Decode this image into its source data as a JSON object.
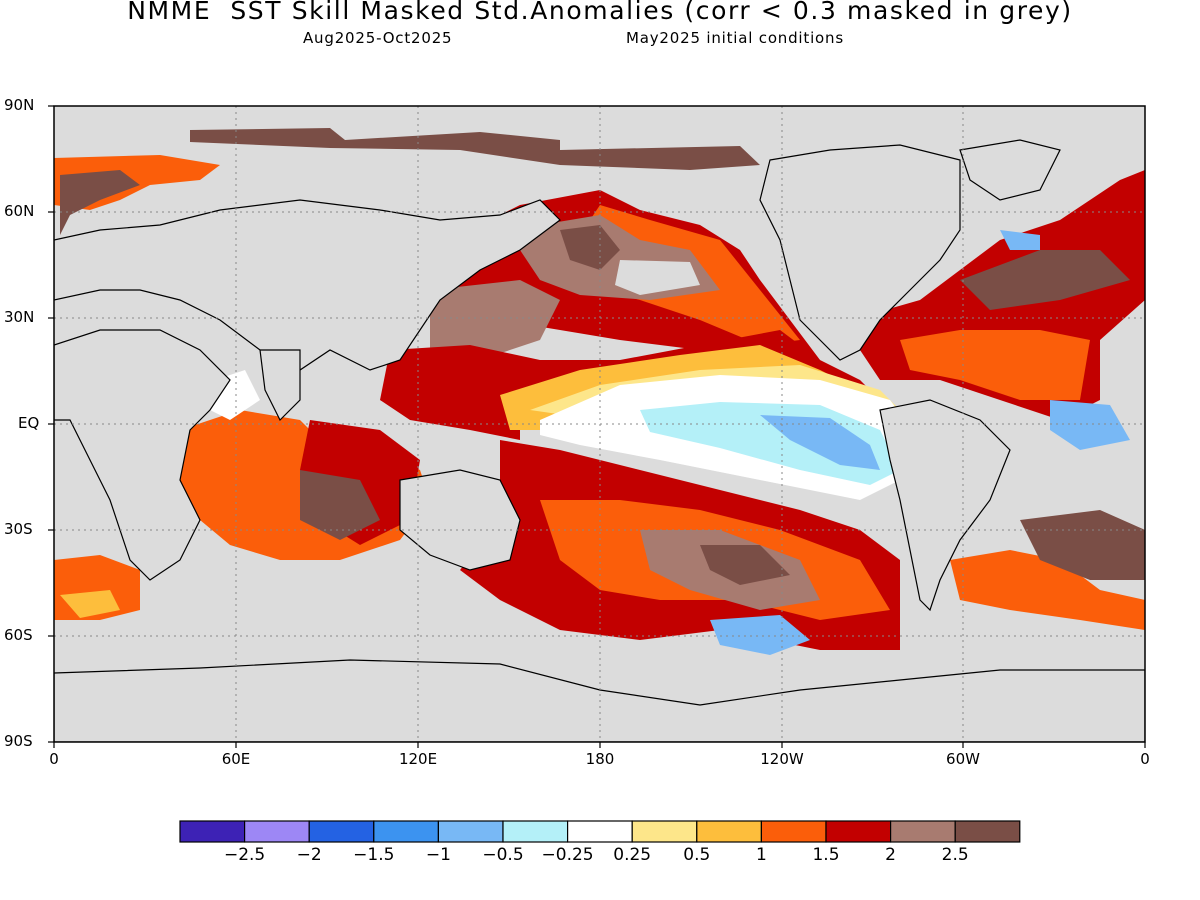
{
  "title": "NMME  SST Skill Masked Std.Anomalies (corr < 0.3 masked in grey)",
  "subtitle_left": "Aug2025-Oct2025",
  "subtitle_right": "May2025 initial conditions",
  "map": {
    "projection": "equirectangular",
    "lon_range": [
      0,
      360
    ],
    "lat_range": [
      -90,
      90
    ],
    "grid": true,
    "mask_color": "#dcdcdc",
    "land_color": "#dcdcdc",
    "y_axis_labels": [
      "90N",
      "60N",
      "30N",
      "EQ",
      "30S",
      "60S",
      "90S"
    ],
    "x_axis_labels": [
      "0",
      "60E",
      "120E",
      "180",
      "120W",
      "60W",
      "0"
    ]
  },
  "colorbar": {
    "colors": [
      "#3d22b5",
      "#9d87f5",
      "#2462e3",
      "#3c93f0",
      "#78b8f5",
      "#b4f0f8",
      "#ffffff",
      "#fde68a",
      "#fdbe3c",
      "#fb5e0a",
      "#c20000",
      "#a87b70",
      "#7a4e46"
    ],
    "labels": [
      "-2.5",
      "-2",
      "-1.5",
      "-1",
      "-0.5",
      "-0.25",
      "0.25",
      "0.5",
      "1",
      "1.5",
      "2",
      "2.5"
    ]
  }
}
